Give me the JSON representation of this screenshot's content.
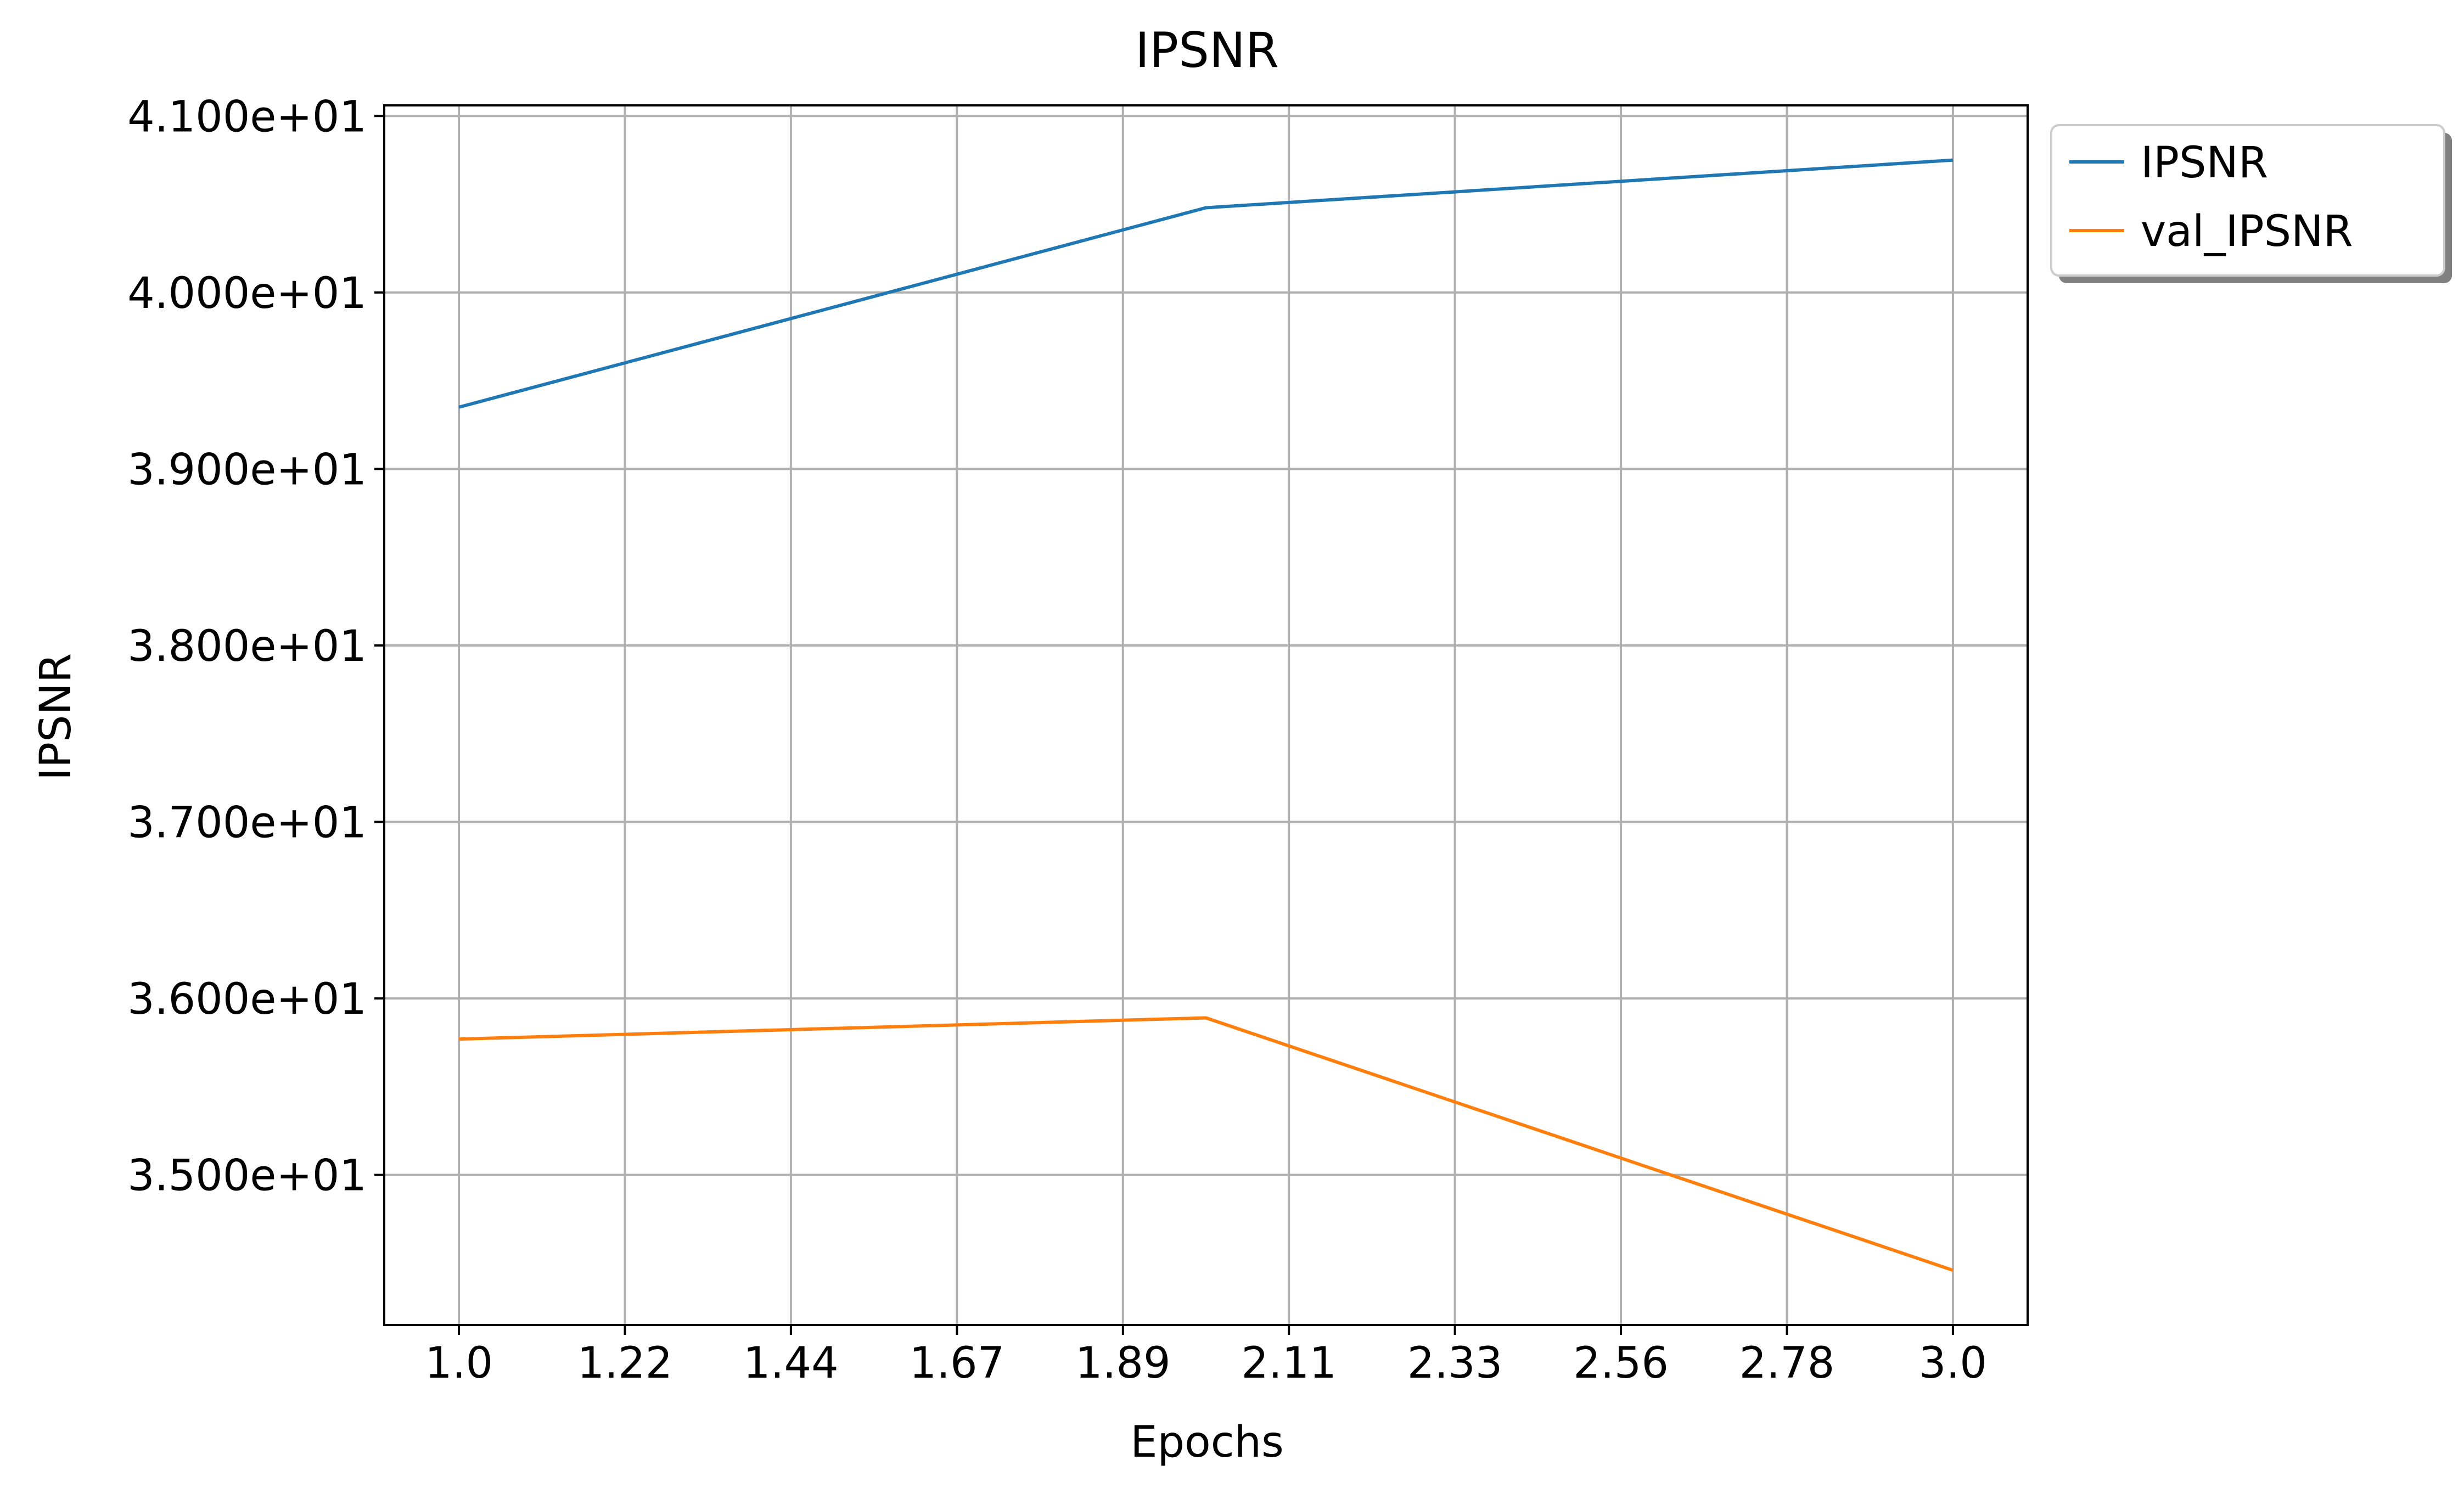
{
  "chart_data": {
    "type": "line",
    "title": "IPSNR",
    "xlabel": "Epochs",
    "ylabel": "IPSNR",
    "x": [
      1.0,
      2.0,
      3.0
    ],
    "series": [
      {
        "name": "IPSNR",
        "color": "#1f77b4",
        "values": [
          39.35,
          40.48,
          40.75
        ]
      },
      {
        "name": "val_IPSNR",
        "color": "#ff7f0e",
        "values": [
          35.77,
          35.89,
          34.46
        ]
      }
    ],
    "xlim": [
      0.9,
      3.1
    ],
    "ylim": [
      34.15,
      41.06
    ],
    "x_ticks": [
      1.0,
      1.2222,
      1.4444,
      1.6667,
      1.8889,
      2.1111,
      2.3333,
      2.5556,
      2.7778,
      3.0
    ],
    "x_tick_labels": [
      "1.0",
      "1.22",
      "1.44",
      "1.67",
      "1.89",
      "2.11",
      "2.33",
      "2.56",
      "2.78",
      "3.0"
    ],
    "y_ticks": [
      35,
      36,
      37,
      38,
      39,
      40,
      41
    ],
    "y_tick_labels": [
      "3.500e+01",
      "3.600e+01",
      "3.700e+01",
      "3.800e+01",
      "3.900e+01",
      "4.000e+01",
      "4.100e+01"
    ],
    "grid": true,
    "legend_position": "outside-top-right"
  }
}
